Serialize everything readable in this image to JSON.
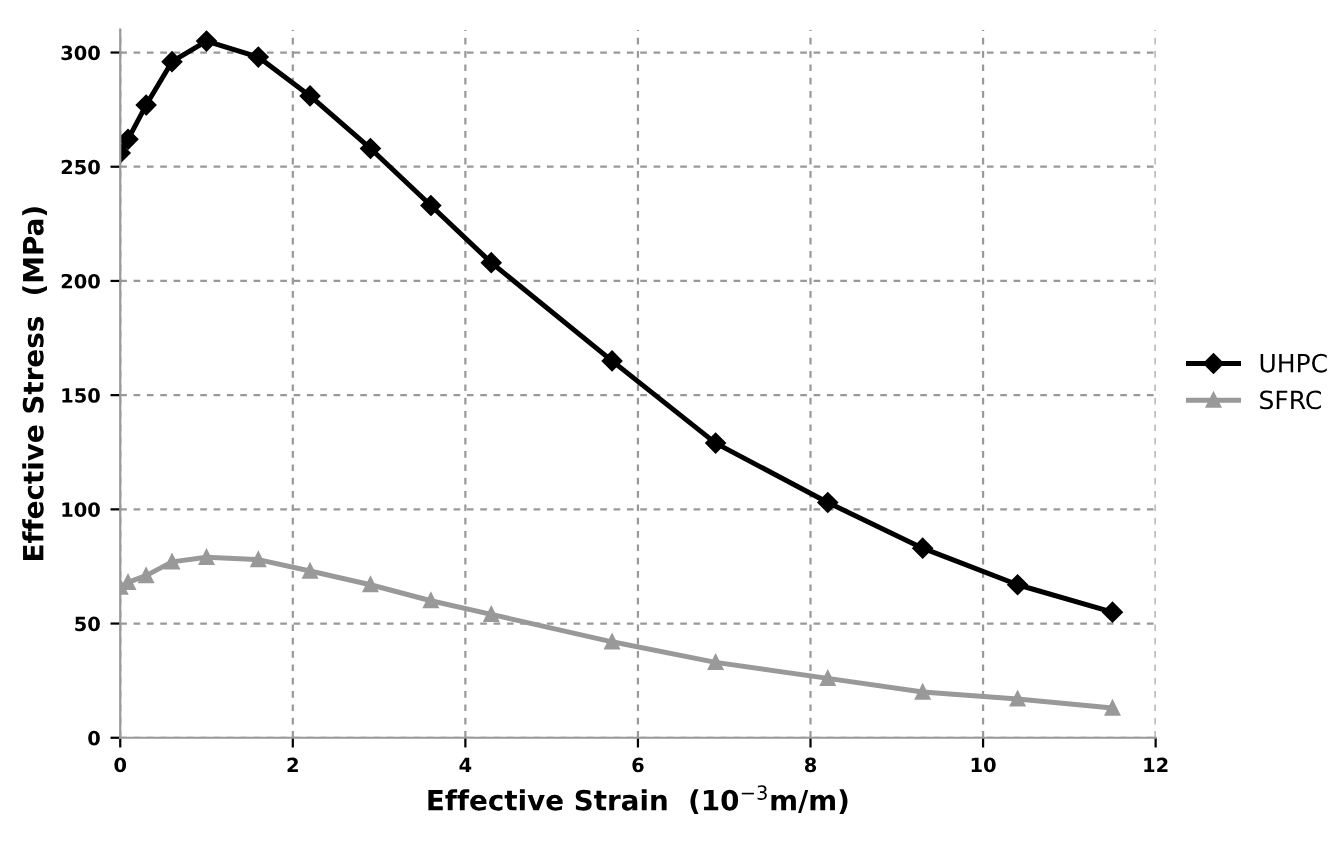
{
  "chart_data": {
    "type": "line",
    "xlabel": "Effective Strain  (10$^{−3}$m/m)",
    "ylabel": "Effective Stress  (MPa)",
    "xlim": [
      0,
      12
    ],
    "xticks": [
      0,
      2,
      4,
      6,
      8,
      10,
      12
    ],
    "ylim": [
      0,
      310
    ],
    "yticks": [
      0,
      50,
      100,
      150,
      200,
      250,
      300
    ],
    "grid": true,
    "legend": "right",
    "line_style": "solid",
    "series": [
      {
        "name": "UHPC",
        "color": "#000000",
        "marker": "diamond",
        "x": [
          0,
          0.09,
          0.3,
          0.6,
          1.0,
          1.6,
          2.2,
          2.9,
          3.6,
          4.3,
          5.7,
          6.9,
          8.2,
          9.3,
          10.4,
          11.5
        ],
        "values": [
          256,
          262,
          277,
          296,
          305,
          298,
          281,
          258,
          233,
          208,
          165,
          129,
          103,
          83,
          67,
          55
        ]
      },
      {
        "name": "SFRC",
        "color": "#999999",
        "marker": "triangle",
        "x": [
          0,
          0.09,
          0.3,
          0.6,
          1.0,
          1.6,
          2.2,
          2.9,
          3.6,
          4.3,
          5.7,
          6.9,
          8.2,
          9.3,
          10.4,
          11.5
        ],
        "values": [
          66,
          68,
          71,
          77,
          79,
          78,
          73,
          67,
          60,
          54,
          42,
          33,
          26,
          20,
          17,
          13
        ]
      }
    ]
  }
}
